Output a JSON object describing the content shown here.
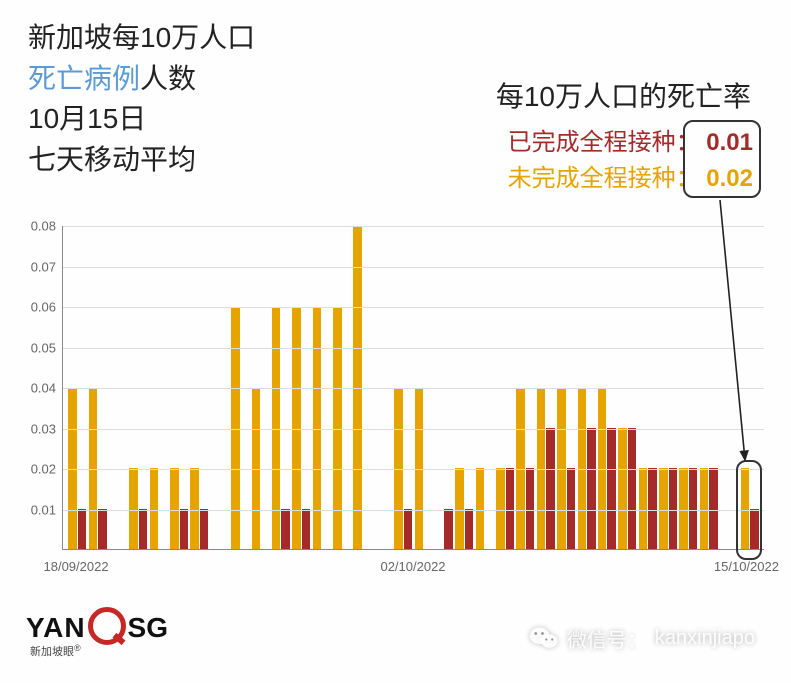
{
  "header": {
    "line1": "新加坡每10万人口",
    "line2a": "死亡病例",
    "line2b": "人数",
    "line3": "10月15日",
    "line4": "七天移动平均"
  },
  "subtitle": "每10万人口的死亡率",
  "legend": {
    "vaccinated_label": "已完成全程接种：",
    "unvaccinated_label": "未完成全程接种：",
    "vaccinated_value": "0.01",
    "unvaccinated_value": "0.02"
  },
  "chart": {
    "type": "bar",
    "ylim": [
      0,
      0.08
    ],
    "ytick_step": 0.01,
    "yticks": [
      "0.01",
      "0.02",
      "0.03",
      "0.04",
      "0.05",
      "0.06",
      "0.07",
      "0.08"
    ],
    "xticks": [
      {
        "label": "18/09/2022",
        "pos": 0.02
      },
      {
        "label": "02/10/2022",
        "pos": 0.5
      },
      {
        "label": "15/10/2022",
        "pos": 0.975
      }
    ],
    "colors": {
      "unvaccinated": "#e5a400",
      "vaccinated": "#a52a2a",
      "grid": "#dddddd",
      "axis": "#888888",
      "background": "#fefefe"
    },
    "label_fontsize": 13,
    "unvaccinated": [
      0.04,
      0.04,
      0.0,
      0.02,
      0.02,
      0.02,
      0.02,
      0.0,
      0.06,
      0.04,
      0.06,
      0.06,
      0.06,
      0.06,
      0.08,
      0.0,
      0.04,
      0.04,
      0.0,
      0.02,
      0.02,
      0.02,
      0.04,
      0.04,
      0.04,
      0.04,
      0.04,
      0.03,
      0.02,
      0.02,
      0.02,
      0.02,
      0.0,
      0.02
    ],
    "vaccinated": [
      0.01,
      0.01,
      0.0,
      0.01,
      0.0,
      0.01,
      0.01,
      0.0,
      0.0,
      0.0,
      0.01,
      0.01,
      0.0,
      0.0,
      0.0,
      0.0,
      0.01,
      0.0,
      0.01,
      0.01,
      0.0,
      0.02,
      0.02,
      0.03,
      0.02,
      0.03,
      0.03,
      0.03,
      0.02,
      0.02,
      0.02,
      0.02,
      0.0,
      0.01
    ]
  },
  "footer": {
    "logo_yan": "YAN",
    "logo_sg": "SG",
    "logo_sub": "新加坡眼",
    "wechat_label": "微信号：",
    "wechat_id": "kanxinjiapo"
  }
}
